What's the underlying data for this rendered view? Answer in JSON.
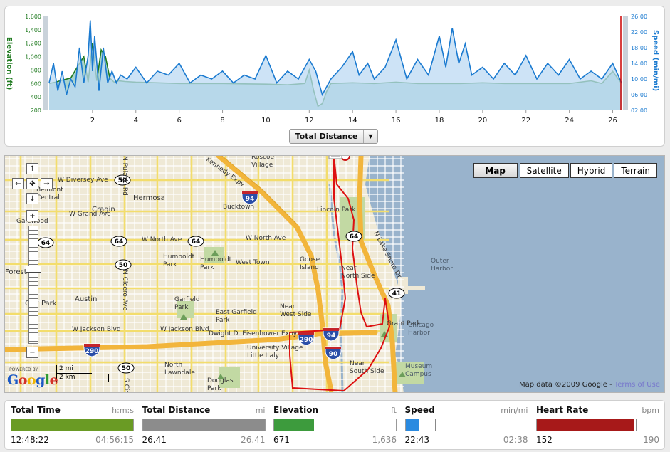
{
  "chart": {
    "left_axis_title": "Elevation (ft)",
    "right_axis_title": "Speed (min/mi)",
    "left_ticks": [
      "1,600",
      "1,400",
      "1,200",
      "1,000",
      "800",
      "600",
      "400",
      "200"
    ],
    "right_ticks": [
      "26:00",
      "22:00",
      "18:00",
      "14:00",
      "10:00",
      "06:00",
      "02:00"
    ],
    "x_ticks": [
      "2",
      "4",
      "6",
      "8",
      "10",
      "12",
      "14",
      "16",
      "18",
      "20",
      "22",
      "24",
      "26"
    ],
    "x_selector_label": "Total Distance",
    "colors": {
      "elevation": "#1f7a1f",
      "speed": "#1a7ad0",
      "elevation_fill": "#a8d4cf",
      "speed_fill": "#bcd9f3",
      "marker": "#cc0000"
    }
  },
  "chart_data": {
    "type": "line",
    "x_unit": "mi",
    "xlim": [
      0,
      26.41
    ],
    "series": [
      {
        "name": "Elevation (ft)",
        "axis": "left",
        "ylim": [
          200,
          1600
        ],
        "x": [
          0,
          0.3,
          0.6,
          1.0,
          1.4,
          1.6,
          1.8,
          2.0,
          2.2,
          2.4,
          2.6,
          2.8,
          3.0,
          3.2,
          3.5,
          4.0,
          5.0,
          6.0,
          7.0,
          8.0,
          9.0,
          10.0,
          11.0,
          11.8,
          12.0,
          12.2,
          12.4,
          12.6,
          12.8,
          13.0,
          14.0,
          15.0,
          16.0,
          17.0,
          18.0,
          19.0,
          20.0,
          21.0,
          22.0,
          23.0,
          24.0,
          25.0,
          25.5,
          26.0,
          26.41
        ],
        "y": [
          600,
          620,
          650,
          680,
          900,
          1000,
          620,
          1200,
          640,
          1100,
          1000,
          680,
          620,
          640,
          630,
          620,
          610,
          600,
          600,
          600,
          595,
          590,
          580,
          600,
          800,
          500,
          260,
          300,
          480,
          600,
          610,
          600,
          620,
          600,
          600,
          600,
          610,
          600,
          600,
          600,
          600,
          640,
          600,
          780,
          600
        ]
      },
      {
        "name": "Speed (min/mi)",
        "axis": "right",
        "ylim": [
          2,
          26
        ],
        "x": [
          0,
          0.2,
          0.4,
          0.6,
          0.8,
          1.0,
          1.2,
          1.4,
          1.6,
          1.8,
          1.9,
          2.0,
          2.1,
          2.3,
          2.5,
          2.7,
          2.9,
          3.1,
          3.3,
          3.6,
          4.0,
          4.5,
          5.0,
          5.5,
          6.0,
          6.5,
          7.0,
          7.5,
          8.0,
          8.5,
          9.0,
          9.5,
          10.0,
          10.5,
          11.0,
          11.5,
          12.0,
          12.3,
          12.6,
          13.0,
          13.5,
          14.0,
          14.3,
          14.7,
          15.0,
          15.5,
          16.0,
          16.5,
          17.0,
          17.5,
          18.0,
          18.3,
          18.6,
          18.9,
          19.2,
          19.5,
          20.0,
          20.5,
          21.0,
          21.5,
          22.0,
          22.5,
          23.0,
          23.5,
          24.0,
          24.5,
          25.0,
          25.5,
          26.0,
          26.41
        ],
        "y": [
          9,
          14,
          7,
          12,
          6,
          10,
          8,
          18,
          9,
          16,
          25,
          12,
          21,
          7,
          18,
          9,
          12,
          9,
          11,
          10,
          13,
          9,
          12,
          11,
          14,
          9,
          11,
          10,
          12,
          9,
          11,
          10,
          16,
          9,
          12,
          10,
          15,
          12,
          6,
          10,
          13,
          17,
          11,
          14,
          10,
          13,
          20,
          10,
          15,
          11,
          21,
          13,
          23,
          14,
          19,
          11,
          13,
          10,
          14,
          11,
          16,
          10,
          14,
          11,
          15,
          10,
          12,
          10,
          14,
          9
        ]
      }
    ]
  },
  "map": {
    "type_buttons": [
      "Map",
      "Satellite",
      "Hybrid",
      "Terrain"
    ],
    "active_type": "Map",
    "attribution": "Map data ©2009  Google - ",
    "terms_link": "Terms of Use",
    "powered_by": "POWERED BY",
    "google_logo": "Google",
    "scale_mi": "2 mi",
    "scale_km": "2 km",
    "labels": {
      "roscoe_village": [
        "Roscoe",
        "Village"
      ],
      "diversey": "W Diversey Ave",
      "belmont": [
        "Belmont",
        "Central"
      ],
      "hermosa": "Hermosa",
      "bucktown": "Bucktown",
      "cragin": "Cragin",
      "grand": "W Grand Ave",
      "lincoln_park": "Lincoln Park",
      "galewood": "Galewood",
      "north_ave_w": "W North Ave",
      "north_ave_e": "W North Ave",
      "humboldt1": [
        "Humboldt",
        "Park"
      ],
      "humboldt2": [
        "Humboldt",
        "Park"
      ],
      "west_town": "West Town",
      "goose": [
        "Goose",
        "Island"
      ],
      "near_north": [
        "Near",
        "North Side"
      ],
      "outer_harbor": [
        "Outer",
        "Harbor"
      ],
      "lake_shore": "N Lake Shore Dr",
      "kennedy": "Kennedy Expy",
      "forest": "Forest",
      "oak_park": "Oak Park",
      "austin": "Austin",
      "cicero_n": "N Cicero Ave",
      "cicero_s": "S Cicero",
      "garfield": [
        "Garfield",
        "Park"
      ],
      "east_garfield": [
        "East Garfield",
        "Park"
      ],
      "near_west": [
        "Near",
        "West Side"
      ],
      "grant_park": "Grant Park",
      "chicago_harbor": [
        "Chicago",
        "Harbor"
      ],
      "jackson": "W Jackson Blvd",
      "jackson2": "W Jackson Blvd",
      "eisenhower": "Dwight D. Eisenhower Expy",
      "univ_village": [
        "University Village",
        "Little Italy"
      ],
      "north_lawndale": [
        "North",
        "Lawndale"
      ],
      "douglas": [
        "Douglas",
        "Park"
      ],
      "near_south": [
        "Near",
        "South Side"
      ],
      "museum": [
        "Museum",
        "Campus"
      ],
      "pulaski": "N Pulaski Rd",
      "ave_n": "Ave"
    },
    "shields": {
      "s50a": "50",
      "s50b": "50",
      "s50c": "50",
      "s64a": "64",
      "s64b": "64",
      "s64c": "64",
      "s64d": "64",
      "s94": "94",
      "s94b": "94",
      "s290a": "290",
      "s290b": "290",
      "s90": "90",
      "s41": "41"
    }
  },
  "stats": [
    {
      "label": "Total Time",
      "unit": "h:m:s",
      "value": "12:48:22",
      "max": "04:56:15",
      "fill_fraction": 1.0,
      "color": "#6a9b24"
    },
    {
      "label": "Total Distance",
      "unit": "mi",
      "value": "26.41",
      "max": "26.41",
      "fill_fraction": 1.0,
      "color": "#8c8c8c"
    },
    {
      "label": "Elevation",
      "unit": "ft",
      "value": "671",
      "max": "1,636",
      "fill_fraction": 0.33,
      "color": "#3d9b3d"
    },
    {
      "label": "Speed",
      "unit": "min/mi",
      "value": "22:43",
      "max": "02:38",
      "fill_fraction": 0.11,
      "color": "#2a8ae0",
      "avg_fraction": 0.24
    },
    {
      "label": "Heart Rate",
      "unit": "bpm",
      "value": "152",
      "max": "190",
      "fill_fraction": 0.8,
      "color": "#a71919",
      "avg_fraction": 0.81
    }
  ]
}
